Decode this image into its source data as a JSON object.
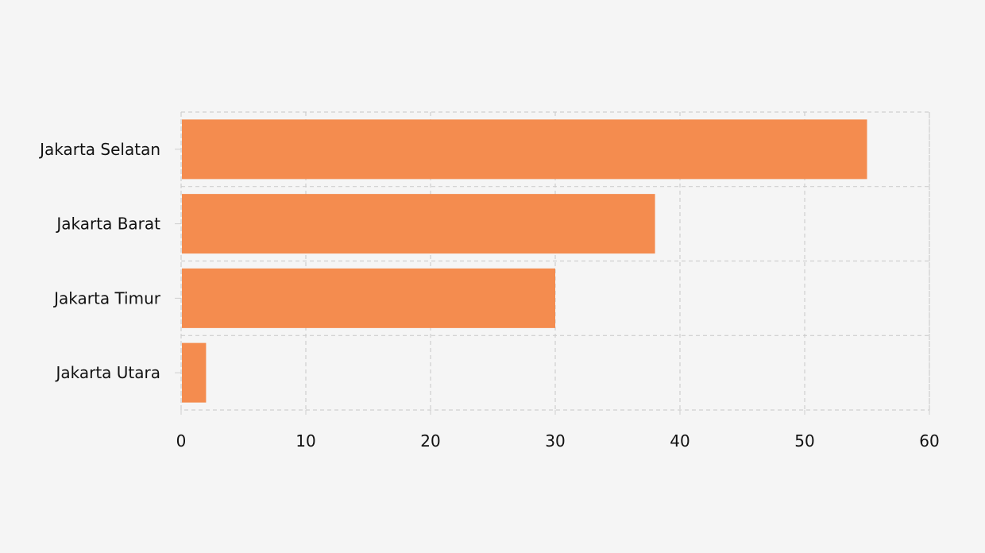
{
  "chart_data": {
    "type": "bar",
    "orientation": "horizontal",
    "categories": [
      "Jakarta Selatan",
      "Jakarta Barat",
      "Jakarta Timur",
      "Jakarta Utara"
    ],
    "values": [
      55,
      38,
      30,
      2
    ],
    "title": "",
    "xlabel": "",
    "ylabel": "",
    "xlim": [
      0,
      60
    ],
    "x_ticks": [
      0,
      10,
      20,
      30,
      40,
      50,
      60
    ],
    "grid": true,
    "legend": "none",
    "bar_color": "#f48c4f",
    "background_color": "#f5f5f5"
  }
}
